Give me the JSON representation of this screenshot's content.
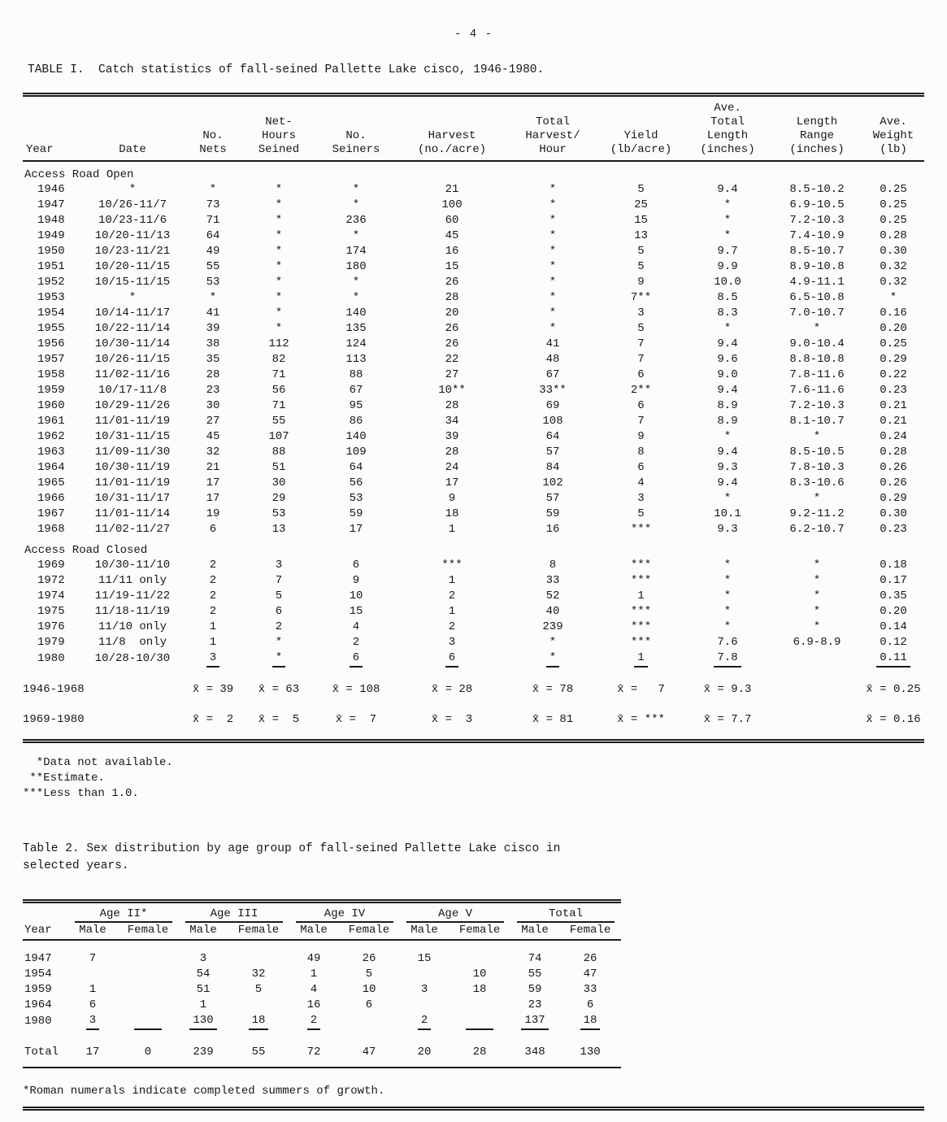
{
  "page_number": "- 4 -",
  "table1": {
    "title": "TABLE I.  Catch statistics of fall-seined Pallette Lake cisco, 1946-1980.",
    "column_headers": [
      [
        "Year"
      ],
      [
        "Date"
      ],
      [
        "No.",
        "Nets"
      ],
      [
        "Net-",
        "Hours",
        "Seined"
      ],
      [
        "No.",
        "Seiners"
      ],
      [
        "Harvest",
        "(no./acre)"
      ],
      [
        "Total",
        "Harvest/",
        "Hour"
      ],
      [
        "Yield",
        "(lb/acre)"
      ],
      [
        "Ave.",
        "Total",
        "Length",
        "(inches)"
      ],
      [
        "Length",
        "Range",
        "(inches)"
      ],
      [
        "Ave.",
        "Weight",
        "(lb)"
      ]
    ],
    "sections": [
      {
        "label": "Access Road Open",
        "rows": [
          [
            "1946",
            "*",
            "*",
            "*",
            "*",
            "21",
            "*",
            "5",
            "9.4",
            "8.5-10.2",
            "0.25"
          ],
          [
            "1947",
            "10/26-11/7",
            "73",
            "*",
            "*",
            "100",
            "*",
            "25",
            "*",
            "6.9-10.5",
            "0.25"
          ],
          [
            "1948",
            "10/23-11/6",
            "71",
            "*",
            "236",
            "60",
            "*",
            "15",
            "*",
            "7.2-10.3",
            "0.25"
          ],
          [
            "1949",
            "10/20-11/13",
            "64",
            "*",
            "*",
            "45",
            "*",
            "13",
            "*",
            "7.4-10.9",
            "0.28"
          ],
          [
            "1950",
            "10/23-11/21",
            "49",
            "*",
            "174",
            "16",
            "*",
            "5",
            "9.7",
            "8.5-10.7",
            "0.30"
          ],
          [
            "1951",
            "10/20-11/15",
            "55",
            "*",
            "180",
            "15",
            "*",
            "5",
            "9.9",
            "8.9-10.8",
            "0.32"
          ],
          [
            "1952",
            "10/15-11/15",
            "53",
            "*",
            "*",
            "26",
            "*",
            "9",
            "10.0",
            "4.9-11.1",
            "0.32"
          ],
          [
            "1953",
            "*",
            "*",
            "*",
            "*",
            "28",
            "*",
            "7**",
            "8.5",
            "6.5-10.8",
            "*"
          ],
          [
            "1954",
            "10/14-11/17",
            "41",
            "*",
            "140",
            "20",
            "*",
            "3",
            "8.3",
            "7.0-10.7",
            "0.16"
          ],
          [
            "1955",
            "10/22-11/14",
            "39",
            "*",
            "135",
            "26",
            "*",
            "5",
            "*",
            "*",
            "0.20"
          ],
          [
            "1956",
            "10/30-11/14",
            "38",
            "112",
            "124",
            "26",
            "41",
            "7",
            "9.4",
            "9.0-10.4",
            "0.25"
          ],
          [
            "1957",
            "10/26-11/15",
            "35",
            "82",
            "113",
            "22",
            "48",
            "7",
            "9.6",
            "8.8-10.8",
            "0.29"
          ],
          [
            "1958",
            "11/02-11/16",
            "28",
            "71",
            "88",
            "27",
            "67",
            "6",
            "9.0",
            "7.8-11.6",
            "0.22"
          ],
          [
            "1959",
            "10/17-11/8",
            "23",
            "56",
            "67",
            "10**",
            "33**",
            "2**",
            "9.4",
            "7.6-11.6",
            "0.23"
          ],
          [
            "1960",
            "10/29-11/26",
            "30",
            "71",
            "95",
            "28",
            "69",
            "6",
            "8.9",
            "7.2-10.3",
            "0.21"
          ],
          [
            "1961",
            "11/01-11/19",
            "27",
            "55",
            "86",
            "34",
            "108",
            "7",
            "8.9",
            "8.1-10.7",
            "0.21"
          ],
          [
            "1962",
            "10/31-11/15",
            "45",
            "107",
            "140",
            "39",
            "64",
            "9",
            "*",
            "*",
            "0.24"
          ],
          [
            "1963",
            "11/09-11/30",
            "32",
            "88",
            "109",
            "28",
            "57",
            "8",
            "9.4",
            "8.5-10.5",
            "0.28"
          ],
          [
            "1964",
            "10/30-11/19",
            "21",
            "51",
            "64",
            "24",
            "84",
            "6",
            "9.3",
            "7.8-10.3",
            "0.26"
          ],
          [
            "1965",
            "11/01-11/19",
            "17",
            "30",
            "56",
            "17",
            "102",
            "4",
            "9.4",
            "8.3-10.6",
            "0.26"
          ],
          [
            "1966",
            "10/31-11/17",
            "17",
            "29",
            "53",
            "9",
            "57",
            "3",
            "*",
            "*",
            "0.29"
          ],
          [
            "1967",
            "11/01-11/14",
            "19",
            "53",
            "59",
            "18",
            "59",
            "5",
            "10.1",
            "9.2-11.2",
            "0.30"
          ],
          [
            "1968",
            "11/02-11/27",
            "6",
            "13",
            "17",
            "1",
            "16",
            "***",
            "9.3",
            "6.2-10.7",
            "0.23"
          ]
        ]
      },
      {
        "label": "Access Road Closed",
        "rows": [
          [
            "1969",
            "10/30-11/10",
            "2",
            "3",
            "6",
            "***",
            "8",
            "***",
            "*",
            "*",
            "0.18"
          ],
          [
            "1972",
            "11/11 only",
            "2",
            "7",
            "9",
            "1",
            "33",
            "***",
            "*",
            "*",
            "0.17"
          ],
          [
            "1974",
            "11/19-11/22",
            "2",
            "5",
            "10",
            "2",
            "52",
            "1",
            "*",
            "*",
            "0.35"
          ],
          [
            "1975",
            "11/18-11/19",
            "2",
            "6",
            "15",
            "1",
            "40",
            "***",
            "*",
            "*",
            "0.20"
          ],
          [
            "1976",
            "11/10 only",
            "1",
            "2",
            "4",
            "2",
            "239",
            "***",
            "*",
            "*",
            "0.14"
          ],
          [
            "1979",
            "11/8  only",
            "1",
            "*",
            "2",
            "3",
            "*",
            "***",
            "7.6",
            "6.9-8.9",
            "0.12"
          ],
          [
            "1980",
            "10/28-10/30",
            {
              "t": "3",
              "u": true
            },
            {
              "t": "*",
              "u": true
            },
            {
              "t": "6",
              "u": true
            },
            {
              "t": "6",
              "u": true
            },
            {
              "t": "*",
              "u": true
            },
            {
              "t": "1",
              "u": true
            },
            {
              "t": "7.8",
              "u": true
            },
            "",
            {
              "t": "0.11",
              "u": true
            }
          ]
        ]
      }
    ],
    "summary_rows": [
      {
        "label": "1946-1968",
        "values": [
          "x̄ = 39",
          "x̄ = 63",
          "x̄ = 108",
          "x̄ = 28",
          "x̄ = 78",
          "x̄ =   7",
          "x̄ = 9.3",
          "x̄ = 0.25"
        ]
      },
      {
        "label": "1969-1980",
        "values": [
          "x̄ =  2",
          "x̄ =  5",
          "x̄ =  7",
          "x̄ =  3",
          "x̄ = 81",
          "x̄ = ***",
          "x̄ = 7.7",
          "x̄ = 0.16"
        ]
      }
    ],
    "footnotes": [
      "  *Data not available.",
      " **Estimate.",
      "***Less than 1.0."
    ]
  },
  "table2": {
    "title_line1": "Table 2.  Sex distribution by age group of fall-seined Pallette Lake cisco in",
    "title_line2": "selected years.",
    "year_header": "Year",
    "age_groups": [
      "Age II*",
      "Age III",
      "Age IV",
      "Age V",
      "Total"
    ],
    "sex_headers": [
      "Male",
      "Female"
    ],
    "rows": [
      {
        "year": "1947",
        "values": [
          "7",
          "",
          "3",
          "",
          "49",
          "26",
          "15",
          "",
          "74",
          "26"
        ]
      },
      {
        "year": "1954",
        "values": [
          "",
          "",
          "54",
          "32",
          "1",
          "5",
          "",
          "10",
          "55",
          "47"
        ]
      },
      {
        "year": "1959",
        "values": [
          "1",
          "",
          "51",
          "5",
          "4",
          "10",
          "3",
          "18",
          "59",
          "33"
        ]
      },
      {
        "year": "1964",
        "values": [
          "6",
          "",
          "1",
          "",
          "16",
          "6",
          "",
          "",
          "23",
          "6"
        ]
      },
      {
        "year": "1980",
        "values": [
          {
            "t": "3",
            "u": true
          },
          {
            "t": "",
            "u": true
          },
          {
            "t": "130",
            "u": true
          },
          {
            "t": "18",
            "u": true
          },
          {
            "t": "2",
            "u": true
          },
          "",
          {
            "t": "2",
            "u": true
          },
          {
            "t": "",
            "u": true
          },
          {
            "t": "137",
            "u": true
          },
          {
            "t": "18",
            "u": true
          }
        ]
      }
    ],
    "total_row": {
      "label": "Total",
      "values": [
        "17",
        "0",
        "239",
        "55",
        "72",
        "47",
        "20",
        "28",
        "348",
        "130"
      ]
    },
    "footnote": "*Roman numerals indicate completed summers of growth."
  }
}
